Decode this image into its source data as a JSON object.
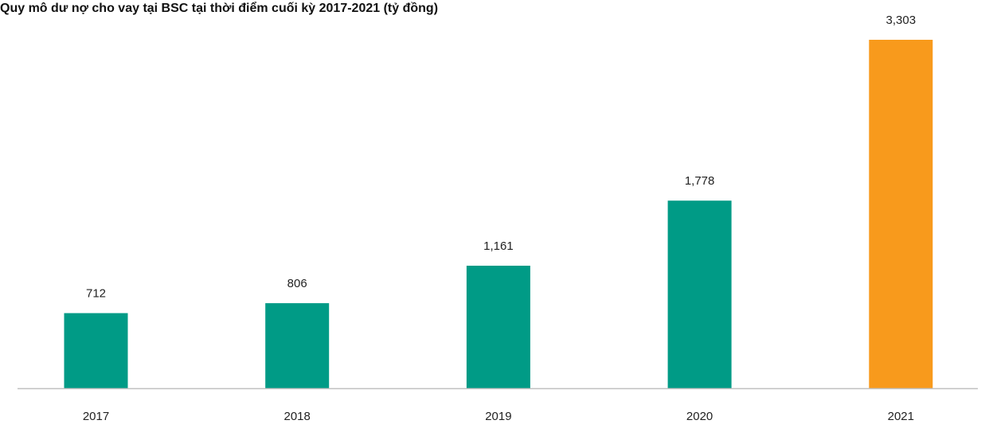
{
  "chart_data": {
    "type": "bar",
    "title": "Quy mô dư nợ cho vay tại BSC tại thời điểm cuối kỳ 2017-2021 (tỷ đồng)",
    "categories": [
      "2017",
      "2018",
      "2019",
      "2020",
      "2021"
    ],
    "values": [
      712,
      806,
      1161,
      1778,
      3303
    ],
    "value_labels": [
      "712",
      "806",
      "1,161",
      "1,778",
      "3,303"
    ],
    "colors": [
      "#009B86",
      "#009B86",
      "#009B86",
      "#009B86",
      "#F89A1C"
    ],
    "axis_color": "#BFBFBF",
    "ylim": [
      0,
      3303
    ],
    "grid": false,
    "legend": "none"
  }
}
